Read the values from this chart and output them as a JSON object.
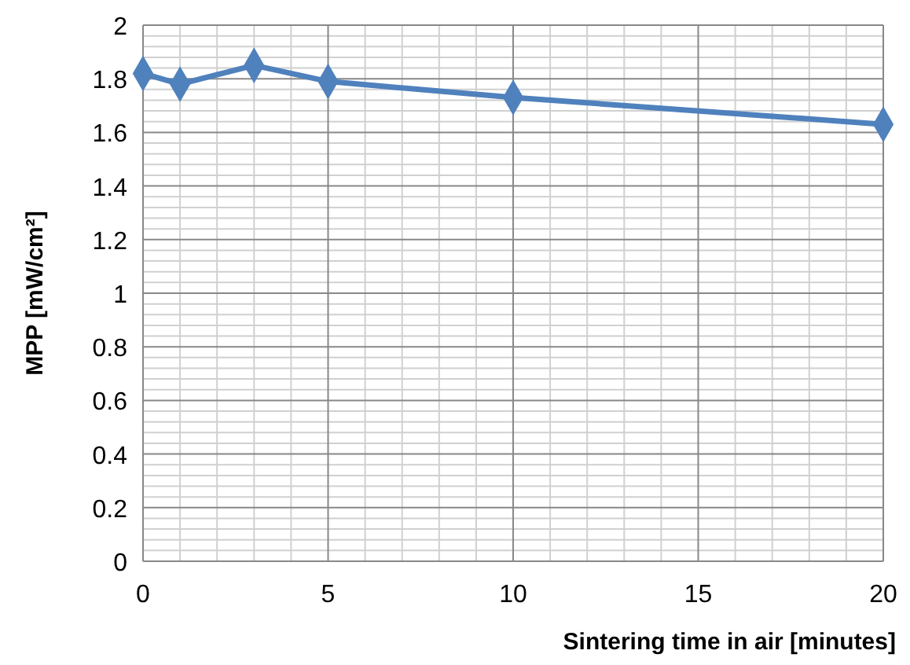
{
  "chart_data": {
    "type": "line",
    "xlabel": "Sintering time in air [minutes]",
    "ylabel": "MPP [mW/cm²]",
    "x": [
      0,
      1,
      3,
      5,
      10,
      20
    ],
    "series": [
      {
        "color": "#4f81bd",
        "values": [
          1.82,
          1.78,
          1.85,
          1.79,
          1.73,
          1.63
        ]
      }
    ],
    "xlim": [
      0,
      20
    ],
    "xticks": [
      0,
      5,
      10,
      15,
      20
    ],
    "ylim": [
      0,
      2
    ],
    "yticks": [
      0,
      0.2,
      0.4,
      0.6,
      0.8,
      1,
      1.2,
      1.4,
      1.6,
      1.8,
      2
    ],
    "grid": true,
    "marker": "diamond",
    "line_style": "solid"
  }
}
